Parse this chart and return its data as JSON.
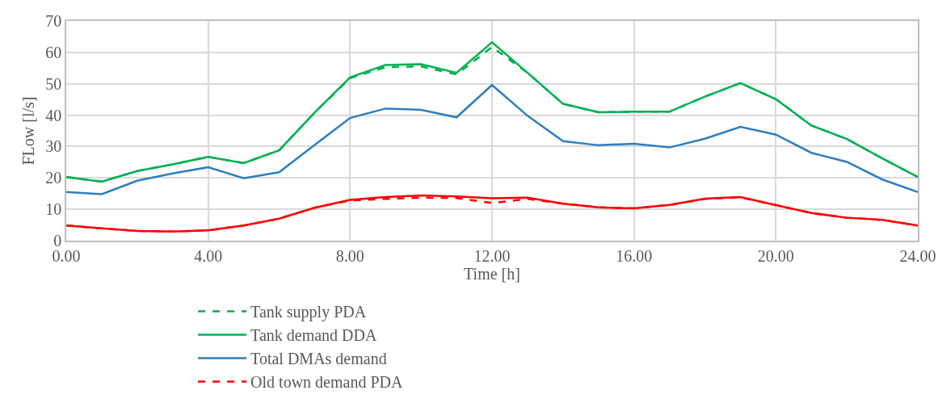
{
  "chart_data": {
    "type": "line",
    "xlabel": "Time [h]",
    "ylabel": "FLow [l/s]",
    "x": [
      0,
      1,
      2,
      3,
      4,
      5,
      6,
      7,
      8,
      9,
      10,
      11,
      12,
      13,
      14,
      15,
      16,
      17,
      18,
      19,
      20,
      21,
      22,
      23,
      24
    ],
    "xlim": [
      0,
      24
    ],
    "xticks": [
      {
        "value": 0,
        "label": "0.00"
      },
      {
        "value": 4,
        "label": "4.00"
      },
      {
        "value": 8,
        "label": "8.00"
      },
      {
        "value": 12,
        "label": "12.00"
      },
      {
        "value": 16,
        "label": "16.00"
      },
      {
        "value": 20,
        "label": "20.00"
      },
      {
        "value": 24,
        "label": "24.00"
      }
    ],
    "ylim": [
      0,
      70
    ],
    "yticks": [
      0,
      10,
      20,
      30,
      40,
      50,
      60,
      70
    ],
    "grid": true,
    "legend": "bottom",
    "marker": "none",
    "series": [
      {
        "name": "Tank supply PDA",
        "color": "#00b050",
        "line_style": "dashed",
        "values": [
          20.3,
          18.8,
          22.2,
          24.3,
          26.7,
          24.7,
          28.8,
          40.8,
          51.8,
          55.3,
          55.5,
          53,
          61.7,
          53.5,
          43.6,
          40.9,
          41.1,
          41.1,
          45.9,
          50.2,
          45.1,
          36.7,
          32.4,
          26.2,
          20.3
        ]
      },
      {
        "name": "Tank demand DDA",
        "color": "#00b050",
        "line_style": "solid",
        "values": [
          20.3,
          18.8,
          22.2,
          24.3,
          26.7,
          24.7,
          28.8,
          40.8,
          52,
          56,
          56.2,
          53.5,
          63.2,
          53.5,
          43.6,
          40.9,
          41.1,
          41.1,
          45.9,
          50.2,
          45.1,
          36.7,
          32.4,
          26.2,
          20.3
        ]
      },
      {
        "name": "Total DMAs demand",
        "color": "#2e7ebf",
        "line_style": "solid",
        "values": [
          15.5,
          14.8,
          19.1,
          21.4,
          23.4,
          19.9,
          21.8,
          30.5,
          39.1,
          42.1,
          41.7,
          39.3,
          49.6,
          39.8,
          31.7,
          30.4,
          30.9,
          29.7,
          32.5,
          36.3,
          33.8,
          28,
          25.1,
          19.5,
          15.5
        ]
      },
      {
        "name": "Old town demand PDA",
        "color": "#ff0000",
        "line_style": "dashed",
        "values": [
          4.8,
          3.9,
          3.1,
          2.9,
          3.3,
          4.8,
          7,
          10.5,
          12.8,
          13.3,
          13.7,
          13.6,
          12,
          13.3,
          11.8,
          10.6,
          10.3,
          11.4,
          13.3,
          13.8,
          11.3,
          8.8,
          7.3,
          6.6,
          4.8
        ]
      },
      {
        "color": "#ff0000",
        "line_style": "solid",
        "values": [
          4.8,
          3.9,
          3.1,
          2.9,
          3.3,
          4.8,
          7,
          10.5,
          13,
          13.9,
          14.4,
          14.1,
          13.5,
          13.7,
          11.8,
          10.6,
          10.3,
          11.4,
          13.4,
          13.9,
          11.3,
          8.8,
          7.3,
          6.6,
          4.8
        ]
      }
    ]
  }
}
